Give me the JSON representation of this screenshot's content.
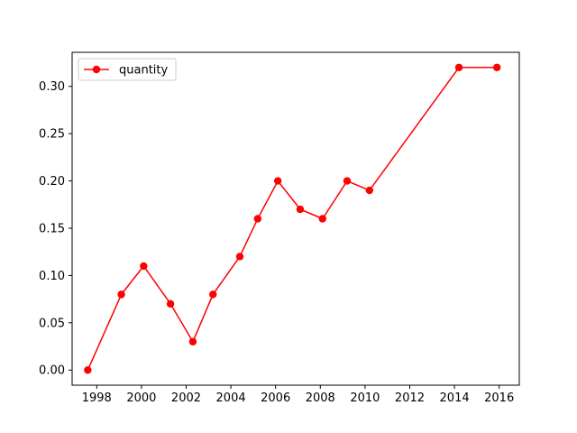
{
  "chart_data": {
    "type": "line",
    "title": "",
    "xlabel": "",
    "ylabel": "",
    "xlim": [
      1996.9,
      2016.9
    ],
    "ylim": [
      -0.016,
      0.336
    ],
    "xticks": [
      1998,
      2000,
      2002,
      2004,
      2006,
      2008,
      2010,
      2012,
      2014,
      2016
    ],
    "xtick_labels": [
      "1998",
      "2000",
      "2002",
      "2004",
      "2006",
      "2008",
      "2010",
      "2012",
      "2014",
      "2016"
    ],
    "yticks": [
      0.0,
      0.05,
      0.1,
      0.15,
      0.2,
      0.25,
      0.3
    ],
    "ytick_labels": [
      "0.00",
      "0.05",
      "0.10",
      "0.15",
      "0.20",
      "0.25",
      "0.30"
    ],
    "grid": false,
    "legend_position": "upper-left",
    "series": [
      {
        "name": "quantity",
        "color": "#ff0000",
        "marker": "circle",
        "x": [
          1997.6,
          1999.1,
          2000.1,
          2001.3,
          2002.3,
          2003.2,
          2004.4,
          2005.2,
          2006.1,
          2007.1,
          2008.1,
          2009.2,
          2010.2,
          2014.2,
          2015.9
        ],
        "y": [
          0.0,
          0.08,
          0.11,
          0.07,
          0.03,
          0.08,
          0.12,
          0.16,
          0.2,
          0.17,
          0.16,
          0.2,
          0.19,
          0.32,
          0.32
        ]
      }
    ]
  }
}
